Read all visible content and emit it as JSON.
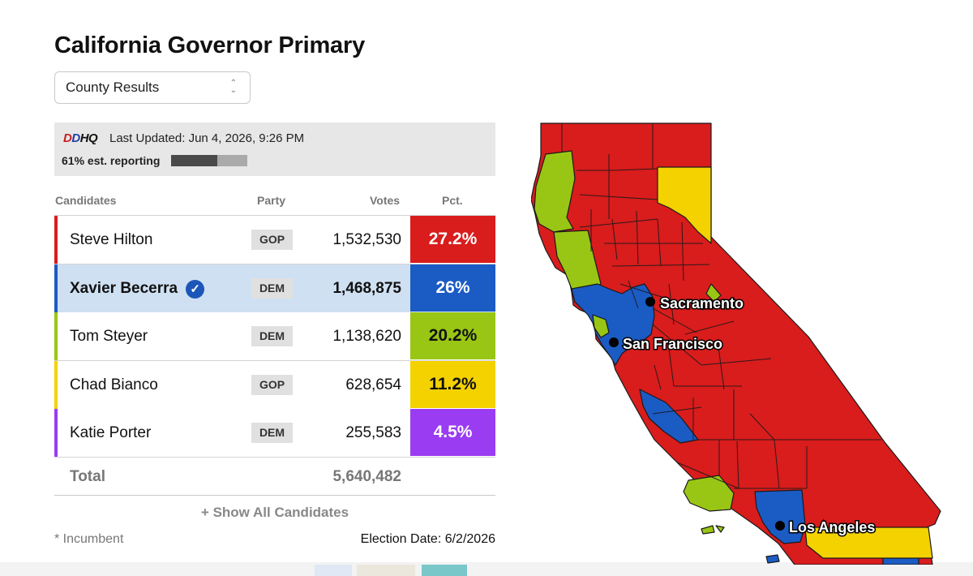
{
  "title": "California Governor Primary",
  "view_select": {
    "value": "County Results"
  },
  "info": {
    "brand": {
      "d1": "D",
      "d2": "D",
      "hq": "HQ"
    },
    "last_updated": "Last Updated: Jun 4, 2026, 9:26 PM",
    "reporting_label": "61% est. reporting",
    "reporting_fraction": 0.61
  },
  "columns": {
    "candidates": "Candidates",
    "party": "Party",
    "votes": "Votes",
    "pct": "Pct."
  },
  "candidates": [
    {
      "name": "Steve Hilton",
      "party": "GOP",
      "votes": "1,532,530",
      "pct": "27.2%",
      "color": "#d91c1c",
      "pct_text": "#ffffff",
      "row_bg": "#ffffff",
      "winner": false
    },
    {
      "name": "Xavier Becerra",
      "party": "DEM",
      "votes": "1,468,875",
      "pct": "26%",
      "color": "#1b5bc4",
      "pct_text": "#ffffff",
      "row_bg": "#cfe0f3",
      "winner": true
    },
    {
      "name": "Tom Steyer",
      "party": "DEM",
      "votes": "1,138,620",
      "pct": "20.2%",
      "color": "#99c614",
      "pct_text": "#111111",
      "row_bg": "#ffffff",
      "winner": false
    },
    {
      "name": "Chad Bianco",
      "party": "GOP",
      "votes": "628,654",
      "pct": "11.2%",
      "color": "#f4d200",
      "pct_text": "#111111",
      "row_bg": "#ffffff",
      "winner": false
    },
    {
      "name": "Katie Porter",
      "party": "DEM",
      "votes": "255,583",
      "pct": "4.5%",
      "color": "#9a3cf2",
      "pct_text": "#ffffff",
      "row_bg": "#ffffff",
      "winner": false
    }
  ],
  "total": {
    "label": "Total",
    "votes": "5,640,482"
  },
  "show_all": "+ Show All Candidates",
  "incumbent_note": "* Incumbent",
  "election_date": "Election Date: 6/2/2026",
  "map": {
    "cities": [
      {
        "name": "Sacramento"
      },
      {
        "name": "San Francisco"
      },
      {
        "name": "Los Angeles"
      }
    ],
    "colors": {
      "red": "#d91c1c",
      "blue": "#1b5bc4",
      "green": "#99c614",
      "yellow": "#f4d200"
    }
  }
}
